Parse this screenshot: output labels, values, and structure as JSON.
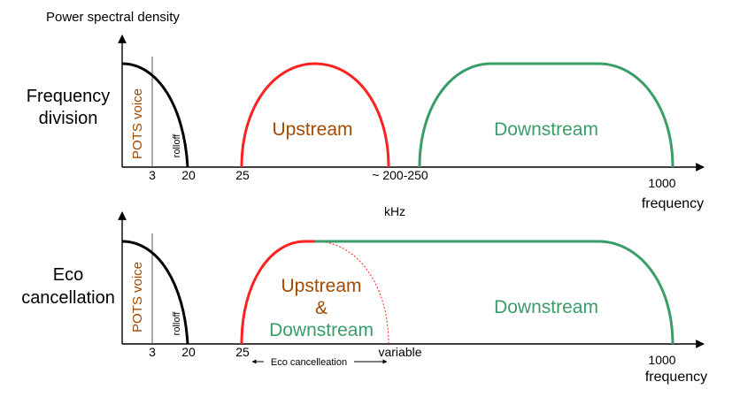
{
  "colors": {
    "black": "#000000",
    "upstream": "#ff2020",
    "downstream": "#3a9d68",
    "pots": "#a24a00",
    "upstream_text": "#a24a00",
    "downstream_text": "#3a9d68"
  },
  "y_axis_label": "Power spectral density",
  "unit_label": "kHz",
  "top": {
    "mode_line1": "Frequency",
    "mode_line2": "division",
    "pots_label": "POTS voice",
    "rolloff_label": "rolloff",
    "upstream_label": "Upstream",
    "downstream_label": "Downstream",
    "ticks": {
      "t3": "3",
      "t20": "20",
      "t25": "25",
      "t200": "~ 200-250",
      "t1000": "1000"
    },
    "axis_label": "frequency"
  },
  "bottom": {
    "mode_line1": "Eco",
    "mode_line2": "cancellation",
    "pots_label": "POTS voice",
    "rolloff_label": "rolloff",
    "shared_line1": "Upstream",
    "shared_line2": "&",
    "shared_line3": "Downstream",
    "downstream_label": "Downstream",
    "ticks": {
      "t3": "3",
      "t20": "20",
      "t25": "25",
      "variable": "variable",
      "t1000": "1000"
    },
    "eco_range_label": "Eco cancelleation",
    "axis_label": "frequency"
  }
}
